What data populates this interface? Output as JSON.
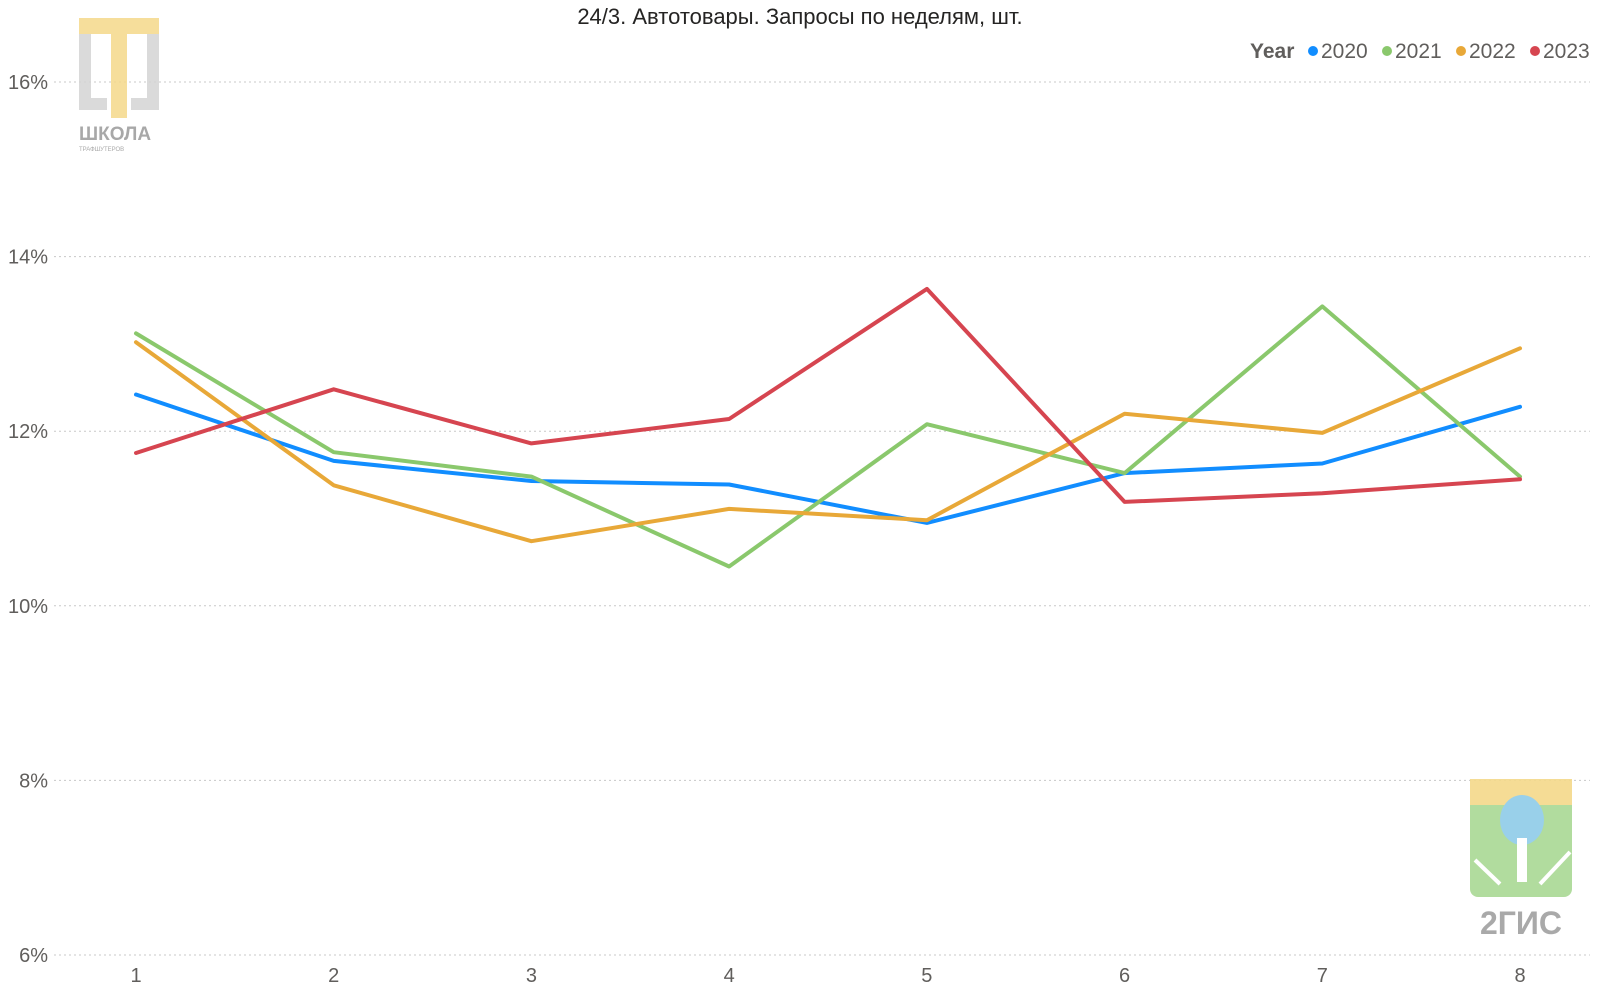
{
  "chart_data": {
    "type": "line",
    "title": "24/3. Автотовары. Запросы по неделям, шт.",
    "xlabel": "",
    "ylabel": "",
    "categories": [
      "1",
      "2",
      "3",
      "4",
      "5",
      "6",
      "7",
      "8"
    ],
    "ylim": [
      6,
      16.5
    ],
    "yticks": [
      6,
      8,
      10,
      12,
      14,
      16
    ],
    "ytick_labels": [
      "6%",
      "8%",
      "10%",
      "12%",
      "14%",
      "16%"
    ],
    "grid": true,
    "legend_position": "top-right",
    "legend_title": "Year",
    "series": [
      {
        "name": "2020",
        "color": "#118dff",
        "values": [
          12.42,
          11.66,
          11.43,
          11.39,
          10.95,
          11.52,
          11.63,
          12.28
        ]
      },
      {
        "name": "2021",
        "color": "#8ac86c",
        "values": [
          13.12,
          11.76,
          11.48,
          10.45,
          12.08,
          11.52,
          13.43,
          11.48
        ]
      },
      {
        "name": "2022",
        "color": "#e8a838",
        "values": [
          13.02,
          11.38,
          10.74,
          11.11,
          10.98,
          12.2,
          11.98,
          12.95
        ]
      },
      {
        "name": "2023",
        "color": "#d64550",
        "values": [
          11.75,
          12.48,
          11.86,
          12.14,
          13.63,
          11.19,
          11.29,
          11.45
        ]
      }
    ]
  },
  "logos": {
    "school": {
      "text": "ШКОЛА",
      "subtext": "ТРАФШУТЕРОВ"
    },
    "gis": {
      "text": "2ГИС"
    }
  }
}
